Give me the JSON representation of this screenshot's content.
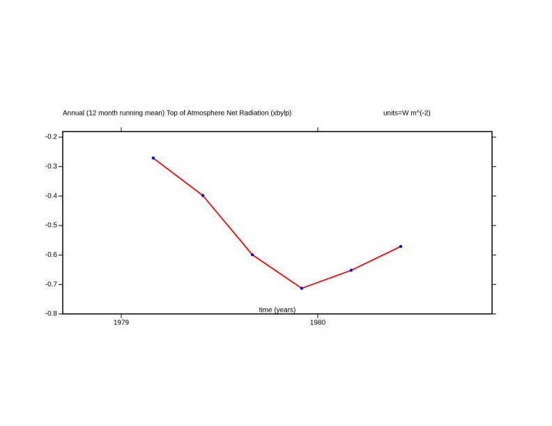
{
  "chart_data": {
    "type": "line",
    "title": "Annual (12 month running mean) Top of Atmosphere Net Radiation (xbylp)",
    "units": "units=W m^(-2)",
    "x_label": "time (years)",
    "x": [
      1979.163,
      1979.415,
      1979.667,
      1979.918,
      1980.17,
      1980.422
    ],
    "series": [
      {
        "color": "#ff0000",
        "marker_color": "#0000ff",
        "values": [
          -0.271,
          -0.398,
          -0.599,
          -0.713,
          -0.652,
          -0.571
        ]
      }
    ],
    "xlim": [
      1978.702,
      1980.887
    ],
    "xticks": [
      1979,
      1980
    ],
    "ylim": [
      -0.8,
      -0.181
    ],
    "yticks": [
      -0.2,
      -0.3,
      -0.4,
      -0.5,
      -0.6,
      -0.7,
      -0.8
    ],
    "grid": false
  }
}
